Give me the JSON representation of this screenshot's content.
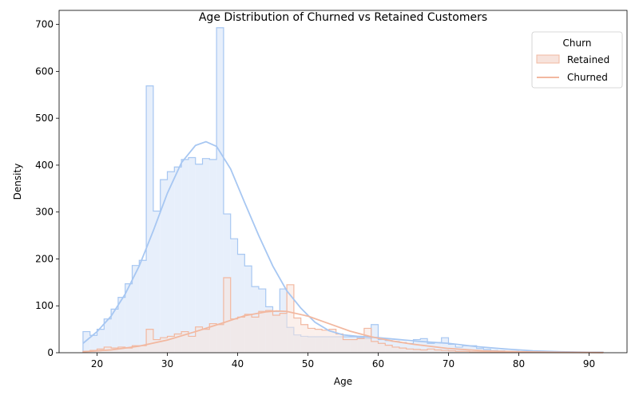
{
  "chart_data": {
    "type": "histogram",
    "title": "Age Distribution of Churned vs Retained Customers",
    "xlabel": "Age",
    "ylabel": "Density",
    "xlim": [
      14.6,
      95.4
    ],
    "ylim": [
      0,
      730
    ],
    "x_ticks": [
      20,
      30,
      40,
      50,
      60,
      70,
      80,
      90
    ],
    "y_ticks": [
      0,
      100,
      200,
      300,
      400,
      500,
      600,
      700
    ],
    "grid": false,
    "legend": {
      "title": "Churn",
      "position": "top-right",
      "entries": [
        "Retained",
        "Churned"
      ]
    },
    "bin_start": 18,
    "bin_width": 1,
    "series": [
      {
        "name": "Retained",
        "color": "#a7c7f2",
        "fill": "#e4edfb",
        "hist": [
          45,
          37,
          50,
          72,
          93,
          118,
          147,
          186,
          197,
          569,
          302,
          369,
          386,
          396,
          412,
          416,
          402,
          414,
          412,
          693,
          296,
          243,
          210,
          185,
          141,
          136,
          98,
          88,
          136,
          54,
          38,
          35,
          34,
          34,
          34,
          34,
          34,
          34,
          34,
          32,
          30,
          60,
          28,
          26,
          24,
          22,
          20,
          28,
          30,
          20,
          22,
          32,
          18,
          12,
          15,
          15,
          9,
          7,
          5,
          4,
          3,
          3,
          2,
          2,
          1,
          1,
          1,
          1,
          1,
          1,
          1,
          1,
          1,
          1
        ],
        "kde": {
          "x": [
            18,
            20,
            22,
            24,
            26,
            28,
            30,
            32,
            34,
            35.5,
            37,
            39,
            41,
            43,
            45,
            47,
            49,
            51,
            53,
            55,
            57,
            60,
            63,
            66,
            70,
            74,
            78,
            82,
            86,
            90,
            92
          ],
          "y": [
            20,
            45,
            78,
            125,
            185,
            260,
            340,
            405,
            442,
            450,
            440,
            392,
            320,
            250,
            185,
            132,
            95,
            65,
            47,
            38,
            35,
            32,
            28,
            24,
            20,
            13,
            8,
            4,
            2,
            1,
            1
          ]
        }
      },
      {
        "name": "Churned",
        "color": "#f2b8a0",
        "fill": "#f7e3dc",
        "hist": [
          3,
          5,
          8,
          12,
          10,
          12,
          10,
          15,
          15,
          50,
          28,
          32,
          35,
          40,
          45,
          35,
          55,
          50,
          62,
          60,
          160,
          72,
          76,
          82,
          76,
          88,
          90,
          80,
          84,
          145,
          74,
          60,
          52,
          50,
          48,
          50,
          40,
          28,
          28,
          30,
          52,
          24,
          20,
          16,
          12,
          10,
          8,
          7,
          6,
          8,
          6,
          5,
          4,
          3,
          3,
          2,
          2,
          2,
          1,
          1,
          1,
          1,
          1,
          1,
          1,
          1,
          1,
          1,
          1,
          1,
          1,
          1,
          1,
          1
        ],
        "kde": {
          "x": [
            18,
            22,
            26,
            30,
            34,
            38,
            41,
            44,
            45.5,
            47,
            50,
            53,
            56,
            59,
            62,
            65,
            70,
            75,
            80,
            85,
            90,
            92
          ],
          "y": [
            2,
            6,
            14,
            27,
            45,
            64,
            79,
            87,
            89,
            88,
            78,
            62,
            46,
            34,
            25,
            18,
            9,
            4,
            2,
            1,
            0.5,
            0.3
          ]
        }
      }
    ]
  }
}
